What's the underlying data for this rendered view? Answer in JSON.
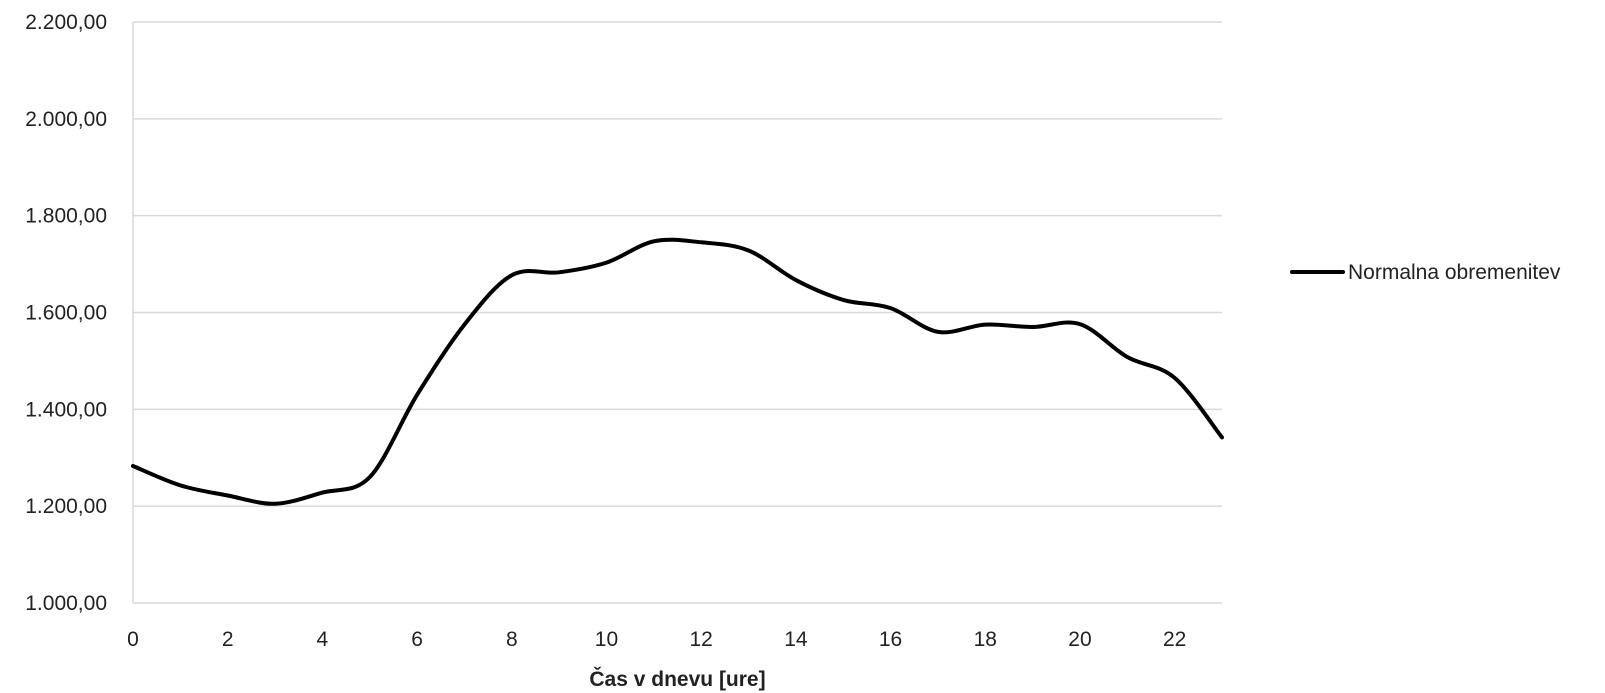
{
  "chart_data": {
    "type": "line",
    "title": "",
    "xlabel": "Čas v dnevu [ure]",
    "ylabel": "",
    "xlim": [
      0,
      23
    ],
    "ylim": [
      1000,
      2200
    ],
    "x_ticks": [
      0,
      2,
      4,
      6,
      8,
      10,
      12,
      14,
      16,
      18,
      20,
      22
    ],
    "x_tick_labels": [
      "0",
      "2",
      "4",
      "6",
      "8",
      "10",
      "12",
      "14",
      "16",
      "18",
      "20",
      "22"
    ],
    "y_ticks": [
      1000,
      1200,
      1400,
      1600,
      1800,
      2000,
      2200
    ],
    "y_tick_labels": [
      "1.000,00",
      "1.200,00",
      "1.400,00",
      "1.600,00",
      "1.800,00",
      "2.000,00",
      "2.200,00"
    ],
    "grid": "horizontal",
    "legend_position": "right",
    "series": [
      {
        "name": "Normalna obremenitev",
        "color": "#000000",
        "x": [
          0,
          1,
          2,
          3,
          4,
          5,
          6,
          7,
          8,
          9,
          10,
          11,
          12,
          13,
          14,
          15,
          16,
          17,
          18,
          19,
          20,
          21,
          22,
          23
        ],
        "values": [
          1283,
          1243,
          1222,
          1205,
          1228,
          1260,
          1430,
          1575,
          1677,
          1683,
          1703,
          1747,
          1745,
          1728,
          1667,
          1626,
          1609,
          1560,
          1575,
          1570,
          1576,
          1508,
          1465,
          1342
        ]
      }
    ]
  }
}
